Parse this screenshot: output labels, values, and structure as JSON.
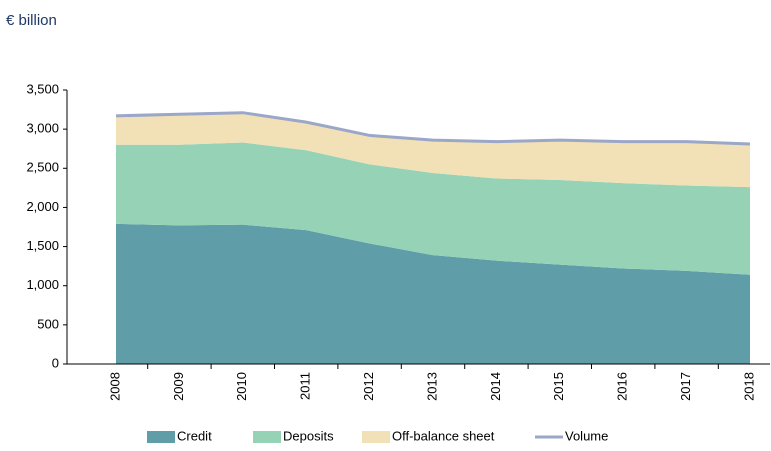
{
  "chart_data": {
    "type": "area",
    "y_label": "€ billion",
    "categories": [
      "2008",
      "2009",
      "2010",
      "2011",
      "2012",
      "2013",
      "2014",
      "2015",
      "2016",
      "2017",
      "2018"
    ],
    "series": [
      {
        "name": "Credit",
        "color": "#5f9ea8",
        "values": [
          1790,
          1770,
          1780,
          1710,
          1540,
          1390,
          1320,
          1270,
          1220,
          1190,
          1140
        ]
      },
      {
        "name": "Deposits",
        "color": "#96d3b6",
        "values": [
          1010,
          1030,
          1050,
          1020,
          1010,
          1050,
          1050,
          1080,
          1090,
          1090,
          1120
        ]
      },
      {
        "name": "Off-balance sheet",
        "color": "#f2e0b6",
        "values": [
          370,
          390,
          380,
          360,
          370,
          420,
          470,
          510,
          530,
          560,
          550
        ]
      },
      {
        "name": "Volume",
        "color": "#9aa7c8",
        "type": "line",
        "values": [
          3170,
          3190,
          3210,
          3090,
          2920,
          2860,
          2840,
          2860,
          2840,
          2840,
          2810
        ]
      }
    ],
    "ylim": [
      0,
      3500
    ],
    "yticks": [
      0,
      {
        "value": 500,
        "label": "500"
      },
      {
        "value": 1000,
        "label": "1,000"
      },
      {
        "value": 1500,
        "label": "1,500"
      },
      {
        "value": 2000,
        "label": "2,000"
      },
      {
        "value": 2500,
        "label": "2,500"
      },
      {
        "value": 3000,
        "label": "3,000"
      },
      {
        "value": 3500,
        "label": "3,500"
      }
    ],
    "legend": "bottom"
  }
}
